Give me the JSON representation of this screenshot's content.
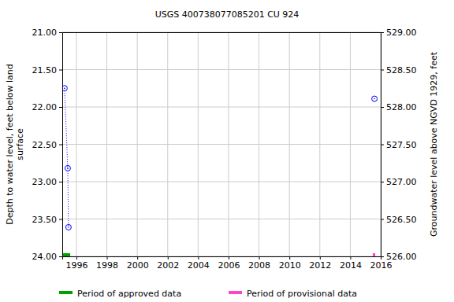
{
  "chart_data": {
    "type": "scatter",
    "title": "USGS 400738077085201 CU   924",
    "ylabel": [
      "Depth to water level, feet below land",
      "surface"
    ],
    "y2label": "Groundwater level above NGVD 1929, feet",
    "xlim": [
      1995.07,
      2016
    ],
    "xticks": [
      1996,
      1998,
      2000,
      2002,
      2004,
      2006,
      2008,
      2010,
      2012,
      2014,
      2016
    ],
    "ylim": [
      21,
      24
    ],
    "yticks": [
      {
        "value": 21,
        "label": "21.00"
      },
      {
        "value": 21.5,
        "label": "21.50"
      },
      {
        "value": 22,
        "label": "22.00"
      },
      {
        "value": 22.5,
        "label": "22.50"
      },
      {
        "value": 23,
        "label": "23.00"
      },
      {
        "value": 23.5,
        "label": "23.50"
      },
      {
        "value": 24,
        "label": "24.00"
      }
    ],
    "y2lim": [
      526,
      529
    ],
    "y2ticks": [
      {
        "value": 526,
        "label": "526.00"
      },
      {
        "value": 526.5,
        "label": "526.50"
      },
      {
        "value": 527,
        "label": "527.00"
      },
      {
        "value": 527.5,
        "label": "527.50"
      },
      {
        "value": 528,
        "label": "528.00"
      },
      {
        "value": 528.5,
        "label": "528.50"
      },
      {
        "value": 529,
        "label": "529.00"
      }
    ],
    "grid": true,
    "series": [
      {
        "color": "#0000ff",
        "marker": "circle-open",
        "line_style": "dotted",
        "x": [
          1995.22,
          1995.43,
          1995.48
        ],
        "values": [
          21.75,
          22.82,
          23.61
        ]
      },
      {
        "color": "#0000ff",
        "marker": "circle-open",
        "line_style": "none",
        "x": [
          2015.59
        ],
        "values": [
          21.89
        ]
      }
    ],
    "periods": [
      {
        "name": "Period of approved data",
        "color": "#00a000",
        "start": 1995.12,
        "end": 1995.59
      },
      {
        "name": "Period of provisional data",
        "color": "#ff44cc",
        "start": 2015.48,
        "end": 2015.64
      }
    ]
  }
}
